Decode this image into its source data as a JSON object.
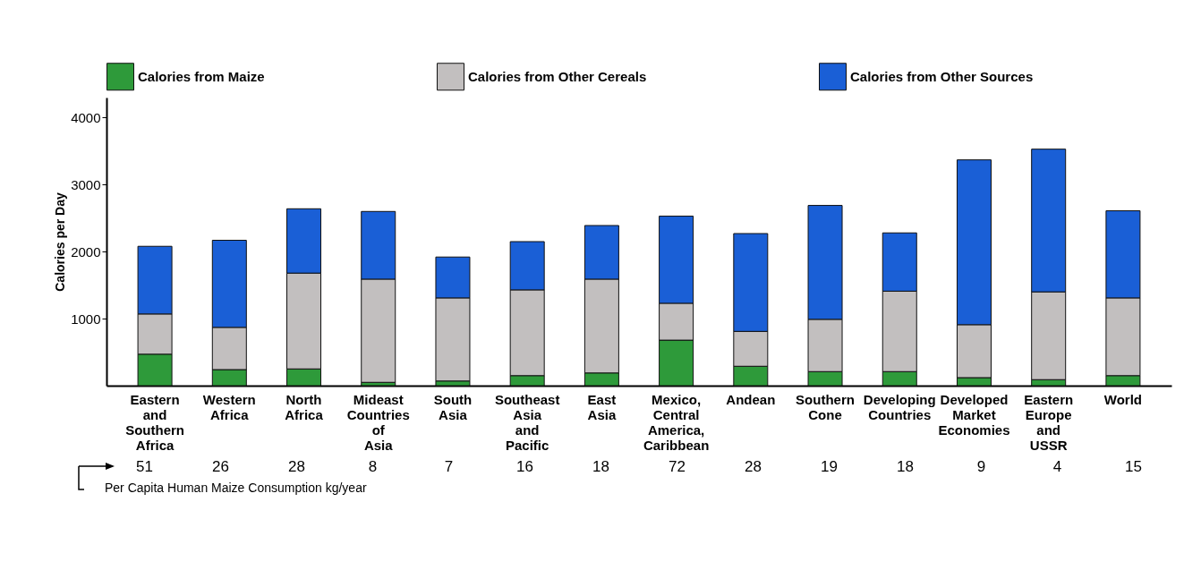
{
  "chart_data": {
    "type": "bar",
    "stacked": true,
    "ylabel": "Calories per Day",
    "categories": [
      "Eastern and Southern Africa",
      "Western Africa",
      "North Africa",
      "Mideast Countries of Asia",
      "South Asia",
      "Southeast Asia and Pacific",
      "East Asia",
      "Mexico, Central America, Caribbean",
      "Andean",
      "Southern Cone",
      "Developing Countries",
      "Developed Market Economies",
      "Eastern Europe and USSR",
      "World"
    ],
    "series": [
      {
        "name": "Calories from Maize",
        "color": "#2e9a3a",
        "values": [
          470,
          240,
          250,
          50,
          70,
          150,
          190,
          680,
          290,
          210,
          210,
          120,
          90,
          150
        ]
      },
      {
        "name": "Calories from Other Cereals",
        "color": "#c2bfbf",
        "values": [
          600,
          630,
          1430,
          1540,
          1240,
          1280,
          1400,
          550,
          520,
          780,
          1200,
          790,
          1310,
          1160
        ]
      },
      {
        "name": "Calories from Other Sources",
        "color": "#1a5fd6",
        "values": [
          1010,
          1300,
          960,
          1010,
          610,
          720,
          800,
          1300,
          1460,
          1700,
          870,
          2460,
          2130,
          1300
        ]
      }
    ],
    "ylim": [
      0,
      4300
    ],
    "yticks": [
      1000,
      2000,
      3000,
      4000
    ],
    "legend": "top",
    "annotations": [
      "Per Capita Human Maize Consumption kg/year",
      "51",
      "26",
      "28",
      "8",
      "7",
      "16",
      "18",
      "72",
      "28",
      "19",
      "18",
      "9",
      "4",
      "15"
    ]
  }
}
